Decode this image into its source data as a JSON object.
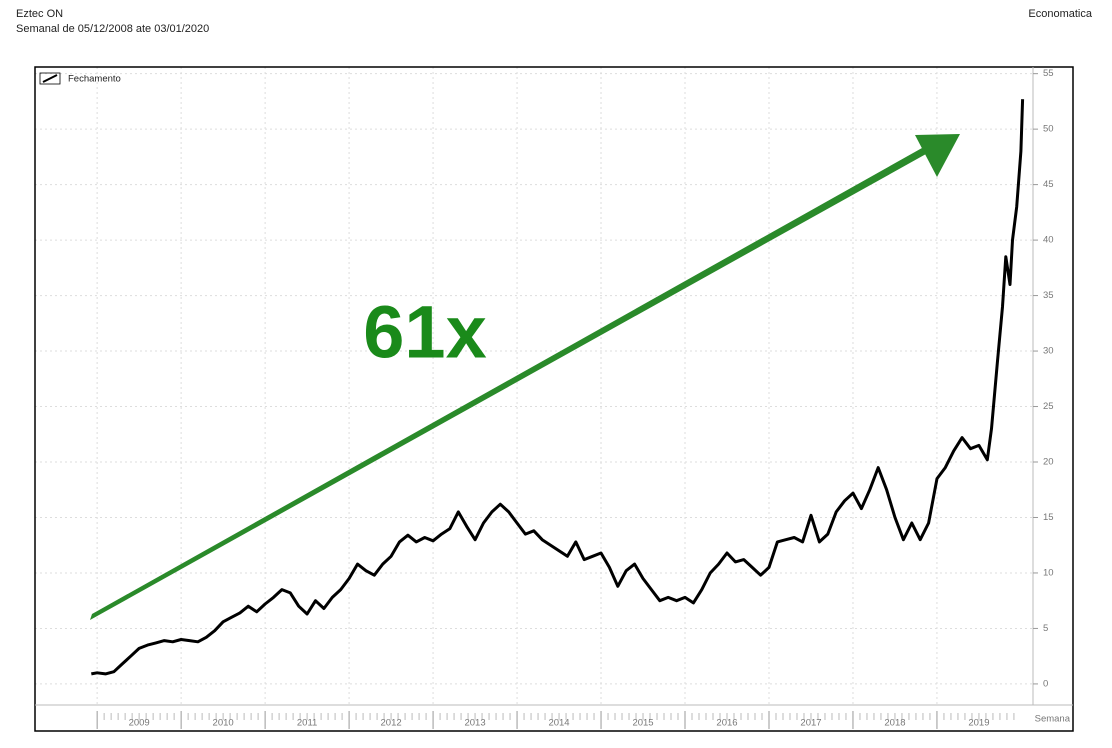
{
  "chart_data": {
    "type": "line",
    "title": "Eztec ON",
    "subtitle": "Semanal de 05/12/2008 ate 03/01/2020",
    "source": "Economatica",
    "annotation": "61x",
    "xlabel": "Semana",
    "xlim": [
      2008.26,
      2020.62
    ],
    "xticks": [
      2009,
      2010,
      2011,
      2012,
      2013,
      2014,
      2015,
      2016,
      2017,
      2018,
      2019
    ],
    "ylim": [
      -1.9,
      55.6
    ],
    "yticks": [
      0,
      5,
      10,
      15,
      20,
      25,
      30,
      35,
      40,
      45,
      50,
      55
    ],
    "grid": true,
    "legend": "top-left",
    "series": [
      {
        "name": "Fechamento",
        "color": "#000000",
        "x": [
          2008.93,
          2009.0,
          2009.1,
          2009.2,
          2009.3,
          2009.4,
          2009.5,
          2009.6,
          2009.7,
          2009.8,
          2009.9,
          2010.0,
          2010.1,
          2010.2,
          2010.3,
          2010.4,
          2010.5,
          2010.6,
          2010.7,
          2010.8,
          2010.9,
          2011.0,
          2011.1,
          2011.2,
          2011.3,
          2011.4,
          2011.5,
          2011.6,
          2011.7,
          2011.8,
          2011.9,
          2012.0,
          2012.1,
          2012.2,
          2012.3,
          2012.4,
          2012.5,
          2012.6,
          2012.7,
          2012.8,
          2012.9,
          2013.0,
          2013.1,
          2013.2,
          2013.3,
          2013.4,
          2013.5,
          2013.6,
          2013.7,
          2013.8,
          2013.9,
          2014.0,
          2014.1,
          2014.2,
          2014.3,
          2014.4,
          2014.5,
          2014.6,
          2014.7,
          2014.8,
          2014.9,
          2015.0,
          2015.1,
          2015.2,
          2015.3,
          2015.4,
          2015.5,
          2015.6,
          2015.7,
          2015.8,
          2015.9,
          2016.0,
          2016.1,
          2016.2,
          2016.3,
          2016.4,
          2016.5,
          2016.6,
          2016.7,
          2016.8,
          2016.9,
          2017.0,
          2017.1,
          2017.2,
          2017.3,
          2017.4,
          2017.5,
          2017.6,
          2017.7,
          2017.8,
          2017.9,
          2018.0,
          2018.1,
          2018.2,
          2018.3,
          2018.4,
          2018.5,
          2018.6,
          2018.7,
          2018.8,
          2018.9,
          2019.0,
          2019.1,
          2019.2,
          2019.3,
          2019.4,
          2019.5,
          2019.6,
          2019.65,
          2019.72,
          2019.78,
          2019.82,
          2019.87,
          2019.9,
          2019.95,
          2020.0,
          2020.02
        ],
        "values": [
          0.9,
          1.0,
          0.9,
          1.1,
          1.8,
          2.5,
          3.2,
          3.5,
          3.7,
          3.9,
          3.8,
          4.0,
          3.9,
          3.8,
          4.2,
          4.8,
          5.6,
          6.0,
          6.4,
          7.0,
          6.5,
          7.2,
          7.8,
          8.5,
          8.2,
          7.0,
          6.3,
          7.5,
          6.8,
          7.8,
          8.5,
          9.5,
          10.8,
          10.2,
          9.8,
          10.8,
          11.5,
          12.8,
          13.4,
          12.8,
          13.2,
          12.9,
          13.5,
          14.0,
          15.5,
          14.2,
          13.0,
          14.5,
          15.5,
          16.2,
          15.5,
          14.5,
          13.5,
          13.8,
          13.0,
          12.5,
          12.0,
          11.5,
          12.8,
          11.2,
          11.5,
          11.8,
          10.5,
          8.8,
          10.2,
          10.8,
          9.5,
          8.5,
          7.5,
          7.8,
          7.5,
          7.8,
          7.3,
          8.5,
          10.0,
          10.8,
          11.8,
          11.0,
          11.2,
          10.5,
          9.8,
          10.5,
          12.8,
          13.0,
          13.2,
          12.8,
          15.2,
          12.8,
          13.5,
          15.5,
          16.5,
          17.2,
          15.8,
          17.5,
          19.5,
          17.5,
          15.0,
          13.0,
          14.5,
          13.0,
          14.5,
          18.5,
          19.5,
          21.0,
          22.2,
          21.2,
          21.5,
          20.2,
          23.0,
          29.0,
          34.0,
          38.5,
          36.0,
          40.0,
          43.0,
          48.0,
          52.7
        ]
      }
    ]
  }
}
